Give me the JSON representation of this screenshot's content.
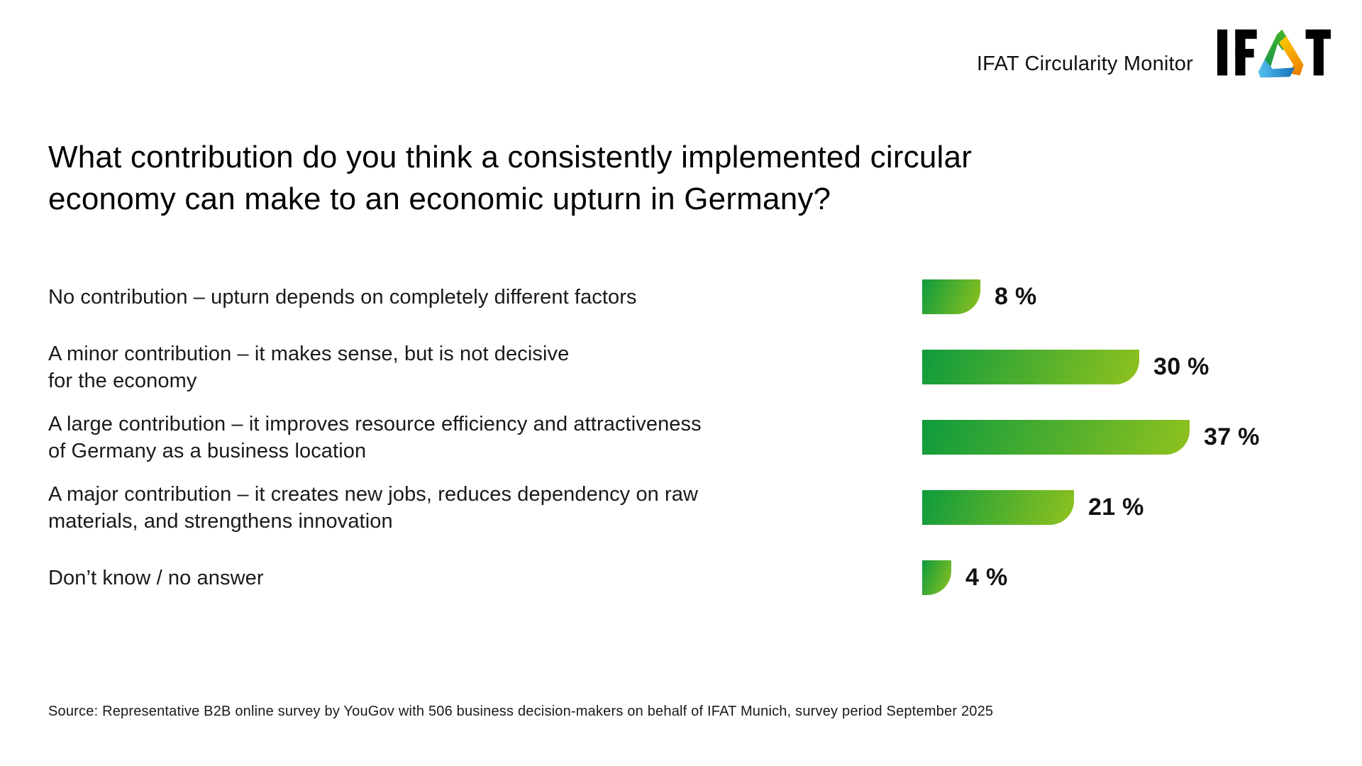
{
  "header": {
    "product_label": "IFAT Circularity Monitor",
    "logo_text_left": "IF",
    "logo_text_right": "T",
    "logo_alt": "IFAT"
  },
  "title": "What contribution do you think a consistently implemented circular\neconomy can make to an economic upturn in Germany?",
  "chart_data": {
    "type": "bar",
    "orientation": "horizontal",
    "title": "What contribution do you think a consistently implemented circular economy can make to an economic upturn in Germany?",
    "categories": [
      "No contribution – upturn depends on completely different factors",
      "A minor contribution – it makes sense, but is not decisive\nfor the economy",
      "A large contribution – it improves resource efficiency and attractiveness\nof Germany as a business location",
      "A major contribution – it creates new jobs, reduces dependency on raw\nmaterials, and strengthens innovation",
      "Don’t know / no answer"
    ],
    "values": [
      8,
      30,
      37,
      21,
      4
    ],
    "value_labels": [
      "8 %",
      "30 %",
      "37 %",
      "21 %",
      "4 %"
    ],
    "xlabel": "",
    "ylabel": "",
    "xlim": [
      0,
      40
    ],
    "grid": false,
    "legend": false,
    "bar_gradient": [
      "#0E9B3D",
      "#90C21E"
    ]
  },
  "logo_colors": {
    "letters": "#000000",
    "green_start": "#15964A",
    "green_end": "#45B22A",
    "orange_start": "#FBC900",
    "orange_end": "#EE7D00",
    "blue_start": "#54C0EE",
    "blue_end": "#1470B8"
  },
  "source": "Source: Representative B2B online survey by YouGov with 506 business decision-makers on behalf of IFAT Munich, survey period September 2025"
}
